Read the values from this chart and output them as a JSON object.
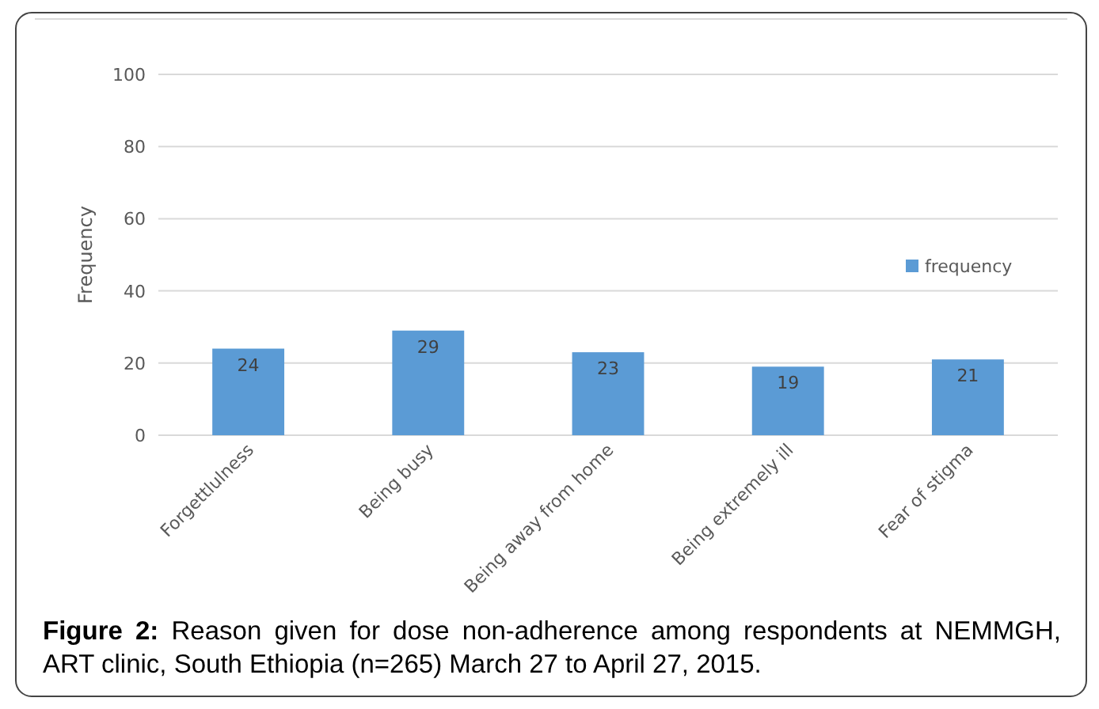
{
  "chart_data": {
    "type": "bar",
    "title": "Figure 2: Reason given for dose non-adherence among respondents at NEMMGH, ART clinic, South Ethiopia (n=265) March 27 to April 27, 2015.",
    "ylabel": "Frequency",
    "categories": [
      "Forgettlulness",
      "Being busy",
      "Being away from home",
      "Being extremely ill",
      "Fear of stigma"
    ],
    "series": [
      {
        "name": "frequency",
        "color": "#5b9bd5",
        "values": [
          24,
          29,
          23,
          19,
          21
        ]
      }
    ],
    "ylim": [
      0,
      100
    ],
    "yticks": [
      0,
      20,
      40,
      60,
      80,
      100
    ],
    "grid": "y",
    "legend": "right",
    "data_labels": true
  }
}
